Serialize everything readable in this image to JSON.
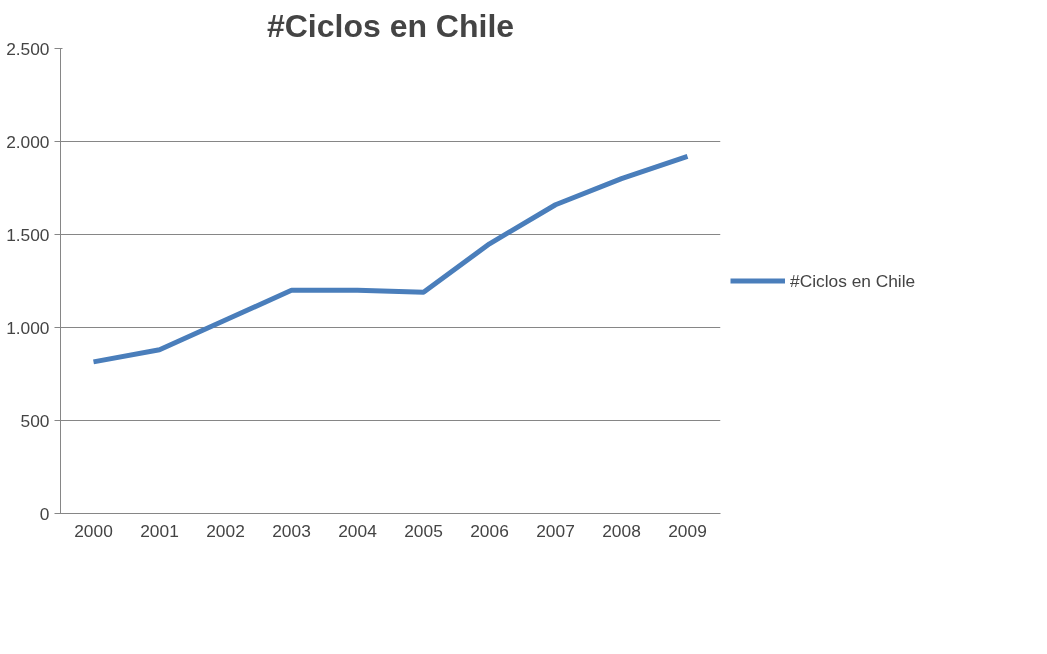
{
  "chart_data": {
    "type": "line",
    "title": "#Ciclos en Chile",
    "categories": [
      "2000",
      "2001",
      "2002",
      "2003",
      "2004",
      "2005",
      "2006",
      "2007",
      "2008",
      "2009"
    ],
    "series": [
      {
        "name": "#Ciclos en Chile",
        "color": "#4a7ebb",
        "values": [
          815,
          880,
          1040,
          1200,
          1200,
          1190,
          1450,
          1660,
          1800,
          1920
        ]
      }
    ],
    "ylim": [
      0,
      2500
    ],
    "yticks": [
      0,
      500,
      {
        "value": 1000,
        "label": "1.000"
      },
      {
        "value": 1500,
        "label": "1.500"
      },
      {
        "value": 2000,
        "label": "2.000"
      },
      {
        "value": 2500,
        "label": "2.500"
      }
    ],
    "grid": "y",
    "legend": "right",
    "marker": "none",
    "line_style": "solid"
  }
}
